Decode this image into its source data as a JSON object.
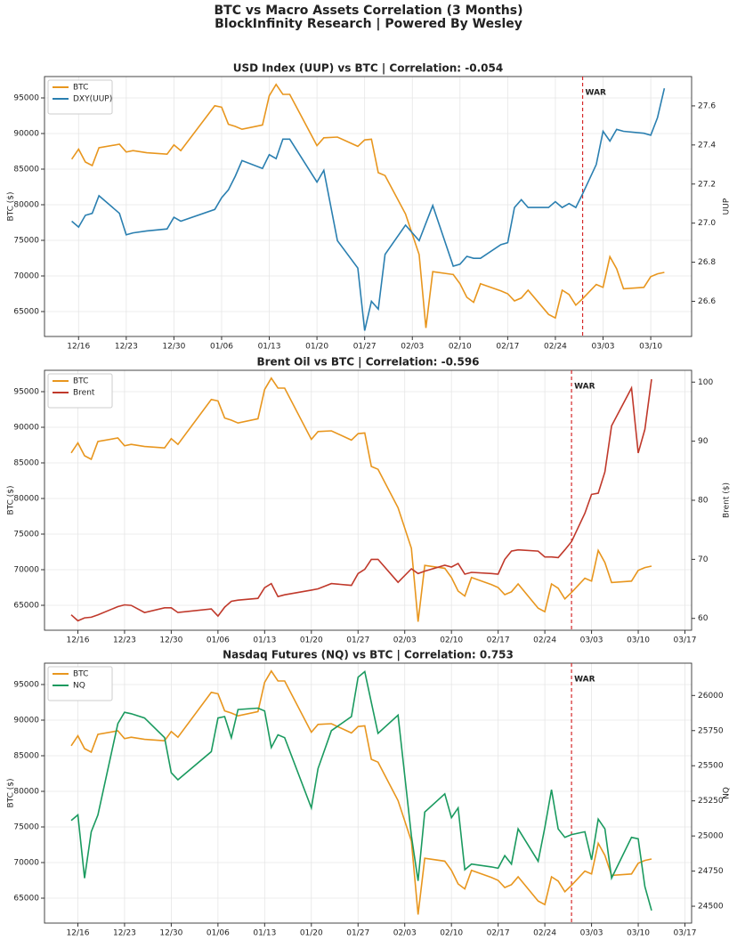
{
  "header": {
    "title": "BTC vs Macro Assets Correlation (3 Months)",
    "subtitle": "BlockInfinity Research | Powered By Wesley"
  },
  "chart_data": [
    {
      "type": "line",
      "title": "USD Index (UUP) vs BTC | Correlation: -0.054",
      "ylabel": "BTC ($)",
      "y2label": "UUP",
      "legend": "upper left",
      "grid": true,
      "x": [
        "12/15",
        "12/16",
        "12/17",
        "12/18",
        "12/19",
        "12/22",
        "12/23",
        "12/24",
        "12/26",
        "12/29",
        "12/30",
        "12/31",
        "01/05",
        "01/06",
        "01/07",
        "01/08",
        "01/09",
        "01/12",
        "01/13",
        "01/14",
        "01/15",
        "01/16",
        "01/20",
        "01/21",
        "01/23",
        "01/26",
        "01/27",
        "01/28",
        "01/29",
        "01/30",
        "02/02",
        "02/04",
        "02/05",
        "02/06",
        "02/09",
        "02/10",
        "02/11",
        "02/12",
        "02/13",
        "02/16",
        "02/17",
        "02/18",
        "02/19",
        "02/20",
        "02/23",
        "02/24",
        "02/25",
        "02/26",
        "02/27",
        "02/28",
        "03/02",
        "03/03",
        "03/04",
        "03/05",
        "03/06",
        "03/09",
        "03/10",
        "03/11",
        "03/12"
      ],
      "xlim": [
        "12/11",
        "03/16"
      ],
      "xticks": [
        "12/16",
        "12/23",
        "12/30",
        "01/06",
        "01/13",
        "01/20",
        "01/27",
        "02/03",
        "02/10",
        "02/17",
        "02/24",
        "03/03",
        "03/10"
      ],
      "ylim": [
        61500,
        98000
      ],
      "yticks": [
        65000,
        70000,
        75000,
        80000,
        85000,
        90000,
        95000
      ],
      "y2lim": [
        26.42,
        27.75
      ],
      "y2ticks": [
        26.6,
        26.8,
        {
          "value": 27,
          "label": "27.0"
        },
        27.2,
        27.4,
        27.6
      ],
      "annotations": [
        {
          "x": "02/28",
          "label": "WAR",
          "color": "#d62728"
        }
      ],
      "series": [
        {
          "name": "BTC",
          "color": "#e8961e",
          "values": [
            86400,
            87800,
            86000,
            85500,
            88000,
            88500,
            87400,
            87600,
            87300,
            87100,
            88400,
            87600,
            93900,
            93700,
            91300,
            91000,
            90600,
            91200,
            95300,
            96900,
            95500,
            95500,
            88300,
            89400,
            89500,
            88200,
            89100,
            89200,
            84500,
            84100,
            78700,
            73000,
            62700,
            70600,
            70200,
            68900,
            67000,
            66300,
            68900,
            67900,
            67500,
            66500,
            66900,
            68000,
            64600,
            64100,
            68000,
            67400,
            65900,
            66800,
            68800,
            68400,
            72700,
            71000,
            68200,
            68400,
            69900,
            70300,
            70500
          ]
        },
        {
          "name": "DXY(UUP)",
          "color": "#2a7fb0",
          "axis": "y2",
          "values": [
            27.01,
            26.98,
            27.04,
            27.05,
            27.14,
            27.05,
            26.94,
            26.95,
            26.96,
            26.97,
            27.03,
            27.01,
            27.07,
            27.13,
            27.17,
            27.24,
            27.32,
            27.28,
            27.35,
            27.33,
            27.43,
            27.43,
            27.21,
            27.27,
            26.91,
            26.77,
            26.45,
            26.6,
            26.56,
            26.84,
            26.99,
            26.91,
            27.0,
            27.09,
            26.78,
            26.79,
            26.83,
            26.82,
            26.82,
            26.89,
            26.9,
            27.08,
            27.12,
            27.08,
            27.08,
            27.11,
            27.08,
            27.1,
            27.08,
            27.15,
            27.3,
            27.47,
            27.42,
            27.48,
            27.47,
            27.46,
            27.45,
            27.54,
            27.69
          ]
        }
      ]
    },
    {
      "type": "line",
      "title": "Brent Oil vs BTC | Correlation: -0.596",
      "ylabel": "BTC ($)",
      "y2label": "Brent ($)",
      "legend": "upper left",
      "grid": true,
      "x": [
        "12/15",
        "12/16",
        "12/17",
        "12/18",
        "12/19",
        "12/22",
        "12/23",
        "12/24",
        "12/26",
        "12/29",
        "12/30",
        "12/31",
        "01/05",
        "01/06",
        "01/07",
        "01/08",
        "01/09",
        "01/12",
        "01/13",
        "01/14",
        "01/15",
        "01/16",
        "01/20",
        "01/21",
        "01/23",
        "01/26",
        "01/27",
        "01/28",
        "01/29",
        "01/30",
        "02/02",
        "02/04",
        "02/05",
        "02/06",
        "02/09",
        "02/10",
        "02/11",
        "02/12",
        "02/13",
        "02/16",
        "02/17",
        "02/18",
        "02/19",
        "02/20",
        "02/23",
        "02/24",
        "02/25",
        "02/26",
        "02/27",
        "02/28",
        "03/02",
        "03/03",
        "03/04",
        "03/05",
        "03/06",
        "03/09",
        "03/10",
        "03/11",
        "03/12"
      ],
      "xlim": [
        "12/11",
        "03/18"
      ],
      "xticks": [
        "12/16",
        "12/23",
        "12/30",
        "01/06",
        "01/13",
        "01/20",
        "01/27",
        "02/03",
        "02/10",
        "02/17",
        "02/24",
        "03/03",
        "03/10",
        "03/17"
      ],
      "ylim": [
        61500,
        98000
      ],
      "yticks": [
        65000,
        70000,
        75000,
        80000,
        85000,
        90000,
        95000
      ],
      "y2lim": [
        58,
        102
      ],
      "y2ticks": [
        60,
        70,
        80,
        90,
        100
      ],
      "annotations": [
        {
          "x": "02/28",
          "label": "WAR",
          "color": "#d62728"
        }
      ],
      "series": [
        {
          "name": "BTC",
          "color": "#e8961e",
          "values": [
            86400,
            87800,
            86000,
            85500,
            88000,
            88500,
            87400,
            87600,
            87300,
            87100,
            88400,
            87600,
            93900,
            93700,
            91300,
            91000,
            90600,
            91200,
            95300,
            96900,
            95500,
            95500,
            88300,
            89400,
            89500,
            88200,
            89100,
            89200,
            84500,
            84100,
            78700,
            73000,
            62700,
            70600,
            70200,
            68900,
            67000,
            66300,
            68900,
            67900,
            67500,
            66500,
            66900,
            68000,
            64600,
            64100,
            68000,
            67400,
            65900,
            66800,
            68800,
            68400,
            72700,
            71000,
            68200,
            68400,
            69900,
            70300,
            70500
          ]
        },
        {
          "name": "Brent",
          "color": "#c0392b",
          "axis": "y2",
          "values": [
            60.6,
            59.6,
            60.1,
            60.2,
            60.6,
            62.0,
            62.3,
            62.2,
            61.0,
            61.8,
            61.8,
            61.0,
            61.6,
            60.4,
            61.9,
            62.9,
            63.1,
            63.4,
            65.2,
            65.9,
            63.7,
            64.0,
            64.8,
            65.0,
            65.9,
            65.6,
            67.6,
            68.3,
            70.0,
            70.0,
            66.1,
            68.4,
            67.6,
            68.0,
            69.0,
            68.7,
            69.3,
            67.5,
            67.8,
            67.6,
            67.5,
            70.0,
            71.4,
            71.6,
            71.4,
            70.4,
            70.4,
            70.3,
            71.6,
            73.0,
            77.8,
            81.0,
            81.2,
            84.8,
            92.6,
            99.0,
            88.0,
            92.0,
            100.5
          ]
        }
      ]
    },
    {
      "type": "line",
      "title": "Nasdaq Futures (NQ) vs BTC | Correlation: 0.753",
      "ylabel": "BTC ($)",
      "y2label": "NQ",
      "legend": "upper left",
      "grid": true,
      "x": [
        "12/15",
        "12/16",
        "12/17",
        "12/18",
        "12/19",
        "12/22",
        "12/23",
        "12/24",
        "12/26",
        "12/29",
        "12/30",
        "12/31",
        "01/05",
        "01/06",
        "01/07",
        "01/08",
        "01/09",
        "01/12",
        "01/13",
        "01/14",
        "01/15",
        "01/16",
        "01/20",
        "01/21",
        "01/23",
        "01/26",
        "01/27",
        "01/28",
        "01/29",
        "01/30",
        "02/02",
        "02/04",
        "02/05",
        "02/06",
        "02/09",
        "02/10",
        "02/11",
        "02/12",
        "02/13",
        "02/16",
        "02/17",
        "02/18",
        "02/19",
        "02/20",
        "02/23",
        "02/24",
        "02/25",
        "02/26",
        "02/27",
        "02/28",
        "03/02",
        "03/03",
        "03/04",
        "03/05",
        "03/06",
        "03/09",
        "03/10",
        "03/11",
        "03/12"
      ],
      "xlim": [
        "12/11",
        "03/18"
      ],
      "xticks": [
        "12/16",
        "12/23",
        "12/30",
        "01/06",
        "01/13",
        "01/20",
        "01/27",
        "02/03",
        "02/10",
        "02/17",
        "02/24",
        "03/03",
        "03/10",
        "03/17"
      ],
      "ylim": [
        61500,
        98000
      ],
      "yticks": [
        65000,
        70000,
        75000,
        80000,
        85000,
        90000,
        95000
      ],
      "y2lim": [
        24380,
        26230
      ],
      "y2ticks": [
        24500,
        24750,
        25000,
        25250,
        25500,
        25750,
        26000
      ],
      "annotations": [
        {
          "x": "02/28",
          "label": "WAR",
          "color": "#d62728"
        }
      ],
      "series": [
        {
          "name": "BTC",
          "color": "#e8961e",
          "values": [
            86400,
            87800,
            86000,
            85500,
            88000,
            88500,
            87400,
            87600,
            87300,
            87100,
            88400,
            87600,
            93900,
            93700,
            91300,
            91000,
            90600,
            91200,
            95300,
            96900,
            95500,
            95500,
            88300,
            89400,
            89500,
            88200,
            89100,
            89200,
            84500,
            84100,
            78700,
            73000,
            62700,
            70600,
            70200,
            68900,
            67000,
            66300,
            68900,
            67900,
            67500,
            66500,
            66900,
            68000,
            64600,
            64100,
            68000,
            67400,
            65900,
            66800,
            68800,
            68400,
            72700,
            71000,
            68200,
            68400,
            69900,
            70300,
            70500
          ]
        },
        {
          "name": "NQ",
          "color": "#1a9a5f",
          "axis": "y2",
          "values": [
            25110,
            25150,
            24700,
            25030,
            25150,
            25800,
            25880,
            25870,
            25840,
            25700,
            25450,
            25400,
            25600,
            25840,
            25850,
            25700,
            25900,
            25910,
            25890,
            25630,
            25720,
            25700,
            25200,
            25480,
            25750,
            25850,
            26130,
            26170,
            25950,
            25730,
            25860,
            25000,
            24680,
            25170,
            25300,
            25130,
            25200,
            24760,
            24800,
            24780,
            24770,
            24860,
            24800,
            25050,
            24820,
            25060,
            25330,
            25050,
            24990,
            25010,
            25030,
            24830,
            25120,
            25050,
            24700,
            24990,
            24980,
            24640,
            24470
          ]
        }
      ]
    }
  ]
}
